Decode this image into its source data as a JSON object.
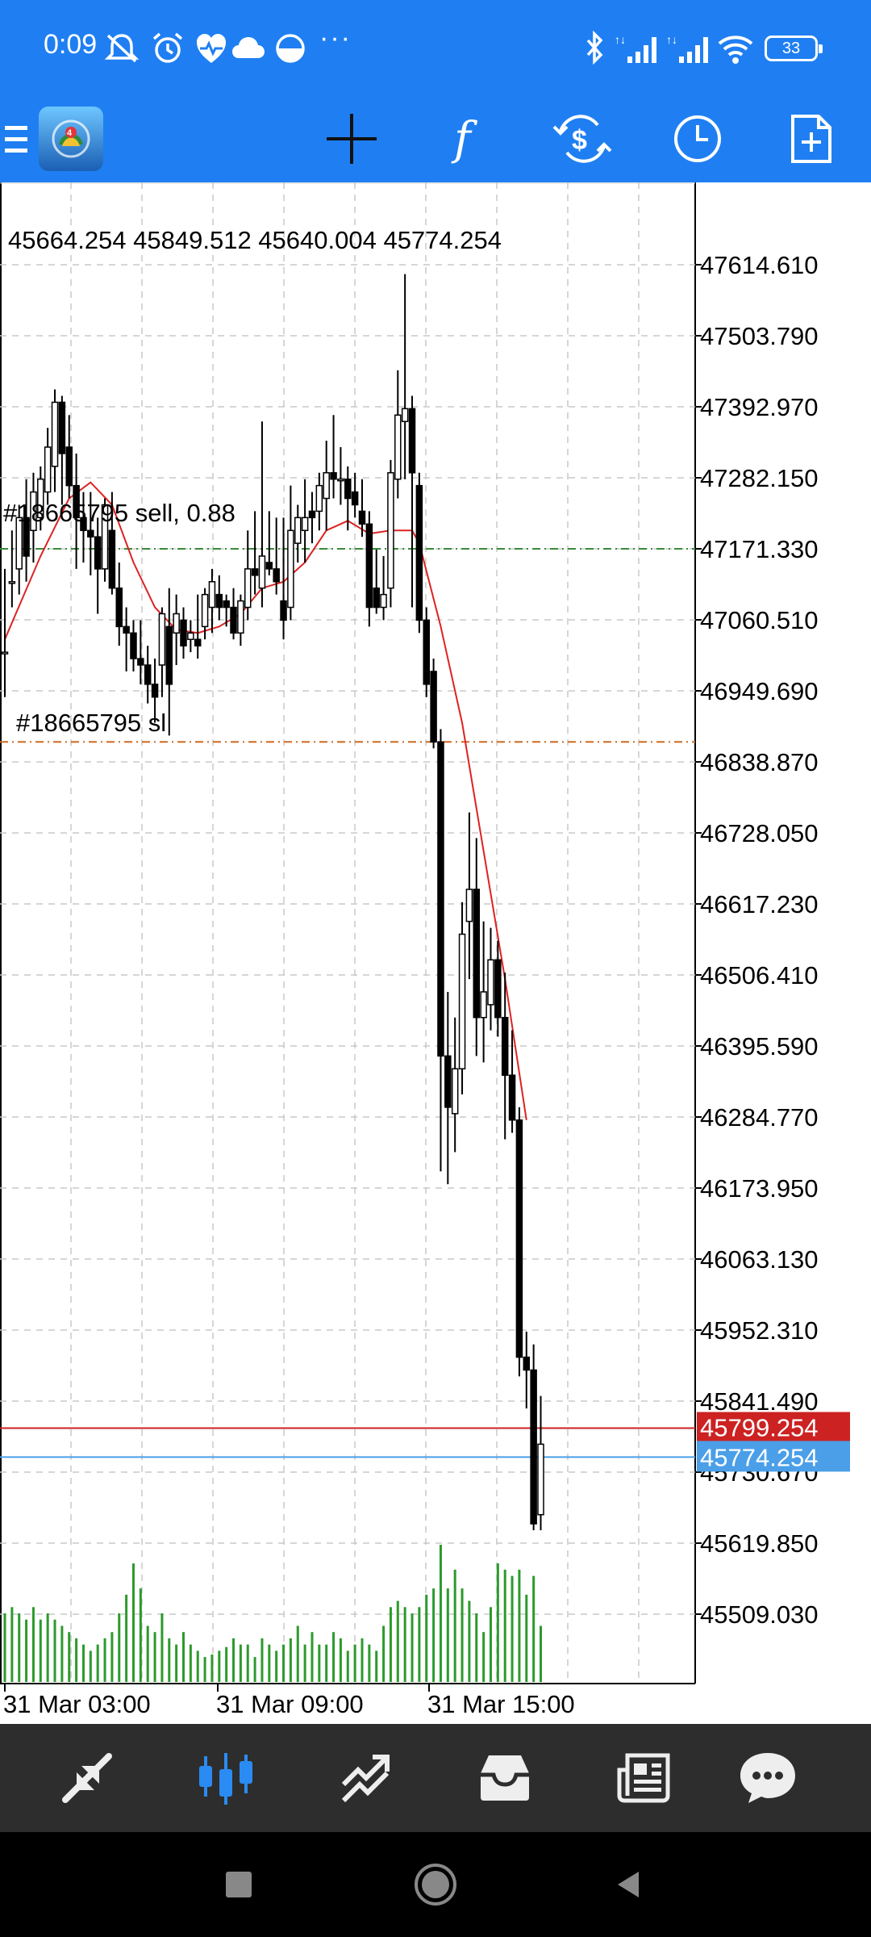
{
  "status_bar": {
    "time": "0:09",
    "more": "···",
    "battery": "33",
    "icons": [
      "mute-icon",
      "alarm-icon",
      "heart-icon",
      "cloud-icon",
      "circle-icon",
      "bluetooth-icon",
      "signal-icon",
      "signal-icon",
      "wifi-icon",
      "battery-icon"
    ]
  },
  "toolbar": {
    "icons": [
      "menu-icon",
      "app-logo",
      "crosshair-icon",
      "indicators-icon",
      "symbols-icon",
      "timeframe-icon",
      "new-order-icon"
    ]
  },
  "chart": {
    "ohlc": "45664.254 45849.512 45640.004 45774.254",
    "order_label": "#18665795 sell, 0.88",
    "sl_label": "#18665795 sl",
    "bid_price": "45799.254",
    "ask_price": "45774.254",
    "price_scale": [
      "47614.610",
      "47503.790",
      "47392.970",
      "47282.150",
      "47171.330",
      "47060.510",
      "46949.690",
      "46838.870",
      "46728.050",
      "46617.230",
      "46506.410",
      "46395.590",
      "46284.770",
      "46173.950",
      "46063.130",
      "45952.310",
      "45841.490",
      "45730.670",
      "45619.850",
      "45509.030"
    ],
    "time_labels": [
      "31 Mar 03:00",
      "31 Mar 09:00",
      "31 Mar 15:00"
    ],
    "colors": {
      "bid_line": "#cc2222",
      "ask_line": "#4a9fe8",
      "ma_line": "#dd2222",
      "volume": "#2c9a2c",
      "sell_line": "#3a8a3a",
      "sl_line": "#d2691e"
    }
  },
  "chart_data": {
    "type": "candlestick",
    "title": "",
    "ylim": [
      45509.03,
      47614.61
    ],
    "candles": [
      {
        "o": 47010,
        "h": 47140,
        "l": 46940,
        "c": 47010
      },
      {
        "o": 47120,
        "h": 47200,
        "l": 47080,
        "c": 47120
      },
      {
        "o": 47140,
        "h": 47240,
        "l": 47100,
        "c": 47220
      },
      {
        "o": 47220,
        "h": 47280,
        "l": 47120,
        "c": 47160
      },
      {
        "o": 47200,
        "h": 47290,
        "l": 47150,
        "c": 47260
      },
      {
        "o": 47220,
        "h": 47300,
        "l": 47200,
        "c": 47280
      },
      {
        "o": 47260,
        "h": 47360,
        "l": 47240,
        "c": 47330
      },
      {
        "o": 47300,
        "h": 47420,
        "l": 47260,
        "c": 47400
      },
      {
        "o": 47400,
        "h": 47410,
        "l": 47240,
        "c": 47320
      },
      {
        "o": 47330,
        "h": 47380,
        "l": 47250,
        "c": 47270
      },
      {
        "o": 47270,
        "h": 47320,
        "l": 47140,
        "c": 47220
      },
      {
        "o": 47220,
        "h": 47260,
        "l": 47150,
        "c": 47200
      },
      {
        "o": 47200,
        "h": 47260,
        "l": 47130,
        "c": 47190
      },
      {
        "o": 47190,
        "h": 47220,
        "l": 47070,
        "c": 47140
      },
      {
        "o": 47140,
        "h": 47250,
        "l": 47120,
        "c": 47240
      },
      {
        "o": 47200,
        "h": 47260,
        "l": 47100,
        "c": 47110
      },
      {
        "o": 47110,
        "h": 47150,
        "l": 47020,
        "c": 47050
      },
      {
        "o": 47050,
        "h": 47080,
        "l": 46980,
        "c": 47040
      },
      {
        "o": 47040,
        "h": 47060,
        "l": 46980,
        "c": 47000
      },
      {
        "o": 47000,
        "h": 47060,
        "l": 46960,
        "c": 46990
      },
      {
        "o": 46990,
        "h": 47020,
        "l": 46930,
        "c": 46960
      },
      {
        "o": 46960,
        "h": 47000,
        "l": 46900,
        "c": 46940
      },
      {
        "o": 46990,
        "h": 47080,
        "l": 46940,
        "c": 47070
      },
      {
        "o": 47050,
        "h": 47110,
        "l": 46880,
        "c": 46960
      },
      {
        "o": 47040,
        "h": 47100,
        "l": 46990,
        "c": 47070
      },
      {
        "o": 47060,
        "h": 47080,
        "l": 47000,
        "c": 47020
      },
      {
        "o": 47030,
        "h": 47060,
        "l": 47010,
        "c": 47040
      },
      {
        "o": 47030,
        "h": 47100,
        "l": 47000,
        "c": 47020
      },
      {
        "o": 47050,
        "h": 47110,
        "l": 47030,
        "c": 47100
      },
      {
        "o": 47080,
        "h": 47140,
        "l": 47040,
        "c": 47120
      },
      {
        "o": 47100,
        "h": 47130,
        "l": 47060,
        "c": 47080
      },
      {
        "o": 47090,
        "h": 47100,
        "l": 47050,
        "c": 47080
      },
      {
        "o": 47080,
        "h": 47110,
        "l": 47030,
        "c": 47040
      },
      {
        "o": 47040,
        "h": 47100,
        "l": 47020,
        "c": 47090
      },
      {
        "o": 47080,
        "h": 47200,
        "l": 47060,
        "c": 47140
      },
      {
        "o": 47140,
        "h": 47230,
        "l": 47100,
        "c": 47130
      },
      {
        "o": 47110,
        "h": 47370,
        "l": 47080,
        "c": 47160
      },
      {
        "o": 47150,
        "h": 47230,
        "l": 47130,
        "c": 47140
      },
      {
        "o": 47140,
        "h": 47220,
        "l": 47100,
        "c": 47120
      },
      {
        "o": 47090,
        "h": 47220,
        "l": 47030,
        "c": 47060
      },
      {
        "o": 47080,
        "h": 47270,
        "l": 47060,
        "c": 47200
      },
      {
        "o": 47180,
        "h": 47240,
        "l": 47150,
        "c": 47220
      },
      {
        "o": 47200,
        "h": 47280,
        "l": 47150,
        "c": 47220
      },
      {
        "o": 47230,
        "h": 47260,
        "l": 47180,
        "c": 47220
      },
      {
        "o": 47230,
        "h": 47290,
        "l": 47200,
        "c": 47270
      },
      {
        "o": 47250,
        "h": 47340,
        "l": 47200,
        "c": 47290
      },
      {
        "o": 47290,
        "h": 47380,
        "l": 47250,
        "c": 47280
      },
      {
        "o": 47280,
        "h": 47330,
        "l": 47240,
        "c": 47280
      },
      {
        "o": 47280,
        "h": 47300,
        "l": 47200,
        "c": 47250
      },
      {
        "o": 47260,
        "h": 47290,
        "l": 47220,
        "c": 47240
      },
      {
        "o": 47230,
        "h": 47280,
        "l": 47190,
        "c": 47210
      },
      {
        "o": 47210,
        "h": 47230,
        "l": 47050,
        "c": 47080
      },
      {
        "o": 47110,
        "h": 47170,
        "l": 47070,
        "c": 47080
      },
      {
        "o": 47080,
        "h": 47160,
        "l": 47060,
        "c": 47100
      },
      {
        "o": 47110,
        "h": 47310,
        "l": 47080,
        "c": 47290
      },
      {
        "o": 47280,
        "h": 47450,
        "l": 47250,
        "c": 47380
      },
      {
        "o": 47370,
        "h": 47600,
        "l": 47280,
        "c": 47390
      },
      {
        "o": 47390,
        "h": 47410,
        "l": 47080,
        "c": 47290
      },
      {
        "o": 47270,
        "h": 47290,
        "l": 47040,
        "c": 47060
      },
      {
        "o": 47060,
        "h": 47080,
        "l": 46940,
        "c": 46960
      },
      {
        "o": 46980,
        "h": 47000,
        "l": 46860,
        "c": 46870
      },
      {
        "o": 46870,
        "h": 46890,
        "l": 46200,
        "c": 46380
      },
      {
        "o": 46380,
        "h": 46480,
        "l": 46180,
        "c": 46300
      },
      {
        "o": 46290,
        "h": 46440,
        "l": 46230,
        "c": 46360
      },
      {
        "o": 46360,
        "h": 46620,
        "l": 46320,
        "c": 46570
      },
      {
        "o": 46590,
        "h": 46760,
        "l": 46500,
        "c": 46640
      },
      {
        "o": 46640,
        "h": 46720,
        "l": 46380,
        "c": 46440
      },
      {
        "o": 46440,
        "h": 46590,
        "l": 46370,
        "c": 46480
      },
      {
        "o": 46460,
        "h": 46580,
        "l": 46420,
        "c": 46530
      },
      {
        "o": 46530,
        "h": 46560,
        "l": 46410,
        "c": 46440
      },
      {
        "o": 46440,
        "h": 46510,
        "l": 46250,
        "c": 46350
      },
      {
        "o": 46350,
        "h": 46420,
        "l": 46260,
        "c": 46280
      },
      {
        "o": 46280,
        "h": 46300,
        "l": 45880,
        "c": 45910
      },
      {
        "o": 45910,
        "h": 45950,
        "l": 45830,
        "c": 45890
      },
      {
        "o": 45890,
        "h": 45930,
        "l": 45640,
        "c": 45650
      },
      {
        "o": 45664.254,
        "h": 45849.512,
        "l": 45640.004,
        "c": 45774.254
      }
    ],
    "volumes": [
      55,
      60,
      55,
      50,
      60,
      50,
      55,
      50,
      45,
      40,
      35,
      30,
      25,
      30,
      35,
      40,
      55,
      70,
      95,
      75,
      45,
      40,
      55,
      35,
      30,
      40,
      30,
      25,
      20,
      22,
      25,
      28,
      35,
      30,
      30,
      20,
      35,
      30,
      25,
      30,
      35,
      45,
      30,
      40,
      30,
      30,
      40,
      35,
      25,
      30,
      35,
      30,
      25,
      45,
      60,
      65,
      60,
      55,
      60,
      70,
      75,
      110,
      75,
      90,
      75,
      65,
      55,
      40,
      60,
      95,
      90,
      85,
      90,
      70,
      85,
      45
    ],
    "ma": [
      {
        "i": 0,
        "v": 47030
      },
      {
        "i": 5,
        "v": 47160
      },
      {
        "i": 9,
        "v": 47250
      },
      {
        "i": 12,
        "v": 47275
      },
      {
        "i": 15,
        "v": 47240
      },
      {
        "i": 18,
        "v": 47150
      },
      {
        "i": 21,
        "v": 47080
      },
      {
        "i": 24,
        "v": 47045
      },
      {
        "i": 27,
        "v": 47040
      },
      {
        "i": 30,
        "v": 47050
      },
      {
        "i": 33,
        "v": 47070
      },
      {
        "i": 36,
        "v": 47110
      },
      {
        "i": 39,
        "v": 47120
      },
      {
        "i": 42,
        "v": 47150
      },
      {
        "i": 45,
        "v": 47200
      },
      {
        "i": 48,
        "v": 47215
      },
      {
        "i": 51,
        "v": 47195
      },
      {
        "i": 54,
        "v": 47200
      },
      {
        "i": 57,
        "v": 47200
      },
      {
        "i": 58,
        "v": 47180
      },
      {
        "i": 61,
        "v": 47050
      },
      {
        "i": 64,
        "v": 46900
      },
      {
        "i": 67,
        "v": 46700
      },
      {
        "i": 70,
        "v": 46500
      },
      {
        "i": 73,
        "v": 46280
      }
    ],
    "sell_level": 47171.33,
    "sl_level": 46870,
    "bid": 45799.254,
    "ask": 45774.254
  },
  "tabs": {
    "items": [
      "quotes-icon",
      "chart-icon",
      "trade-icon",
      "history-icon",
      "news-icon",
      "chat-icon"
    ],
    "active": "chart-icon"
  },
  "nav": {
    "items": [
      "recent-apps-icon",
      "home-icon",
      "back-icon"
    ]
  }
}
